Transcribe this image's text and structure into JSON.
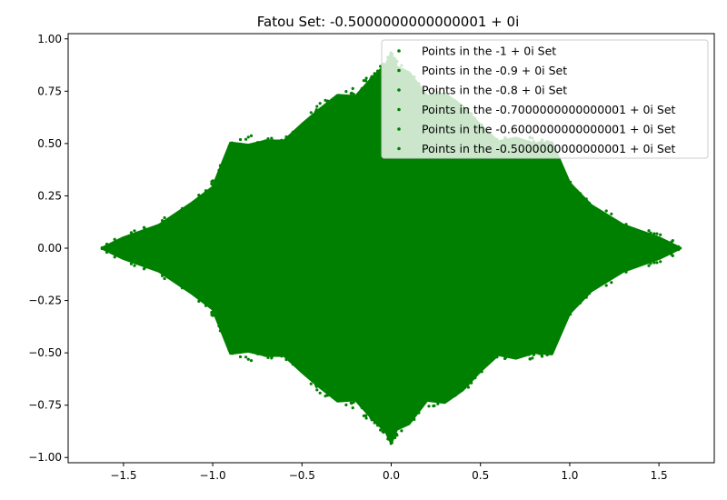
{
  "chart_data": {
    "type": "scatter",
    "title": "Fatou Set: -0.5000000000000001 + 0i",
    "xlabel": "",
    "ylabel": "",
    "xlim": [
      -1.81,
      1.81
    ],
    "ylim": [
      -1.025,
      1.025
    ],
    "x_ticks": [
      -1.5,
      -1.0,
      -0.5,
      0.0,
      0.5,
      1.0,
      1.5
    ],
    "x_tick_labels": [
      "−1.5",
      "−1.0",
      "−0.5",
      "0.0",
      "0.5",
      "1.0",
      "1.5"
    ],
    "y_ticks": [
      -1.0,
      -0.75,
      -0.5,
      -0.25,
      0.0,
      0.25,
      0.5,
      0.75,
      1.0
    ],
    "y_tick_labels": [
      "−1.00",
      "−0.75",
      "−0.50",
      "−0.25",
      "0.00",
      "0.25",
      "0.50",
      "0.75",
      "1.00"
    ],
    "grid": false,
    "legend_position": "top-right",
    "marker_color": "#008000",
    "series": [
      {
        "name": "Points in the -1 + 0i Set",
        "color": "#008000"
      },
      {
        "name": "Points in the -0.9 + 0i Set",
        "color": "#008000"
      },
      {
        "name": "Points in the -0.8 + 0i Set",
        "color": "#008000"
      },
      {
        "name": "Points in the -0.7000000000000001 + 0i Set",
        "color": "#008000"
      },
      {
        "name": "Points in the -0.6000000000000001 + 0i Set",
        "color": "#008000"
      },
      {
        "name": "Points in the -0.5000000000000001 + 0i Set",
        "color": "#008000"
      }
    ],
    "filled_region_outline_upper": [
      [
        -1.62,
        0.0
      ],
      [
        -1.5,
        0.05
      ],
      [
        -1.3,
        0.12
      ],
      [
        -1.12,
        0.2
      ],
      [
        -1.0,
        0.31
      ],
      [
        -0.9,
        0.48
      ],
      [
        -0.8,
        0.52
      ],
      [
        -0.7,
        0.51
      ],
      [
        -0.6,
        0.52
      ],
      [
        -0.5,
        0.58
      ],
      [
        -0.4,
        0.68
      ],
      [
        -0.3,
        0.71
      ],
      [
        -0.2,
        0.75
      ],
      [
        -0.1,
        0.82
      ],
      [
        -0.03,
        0.88
      ],
      [
        0.0,
        0.92
      ],
      [
        0.03,
        0.88
      ],
      [
        0.1,
        0.82
      ],
      [
        0.2,
        0.75
      ],
      [
        0.3,
        0.71
      ],
      [
        0.4,
        0.68
      ],
      [
        0.5,
        0.58
      ],
      [
        0.6,
        0.52
      ],
      [
        0.7,
        0.51
      ],
      [
        0.8,
        0.52
      ],
      [
        0.9,
        0.48
      ],
      [
        1.0,
        0.31
      ],
      [
        1.12,
        0.2
      ],
      [
        1.3,
        0.12
      ],
      [
        1.5,
        0.05
      ],
      [
        1.62,
        0.0
      ]
    ]
  }
}
